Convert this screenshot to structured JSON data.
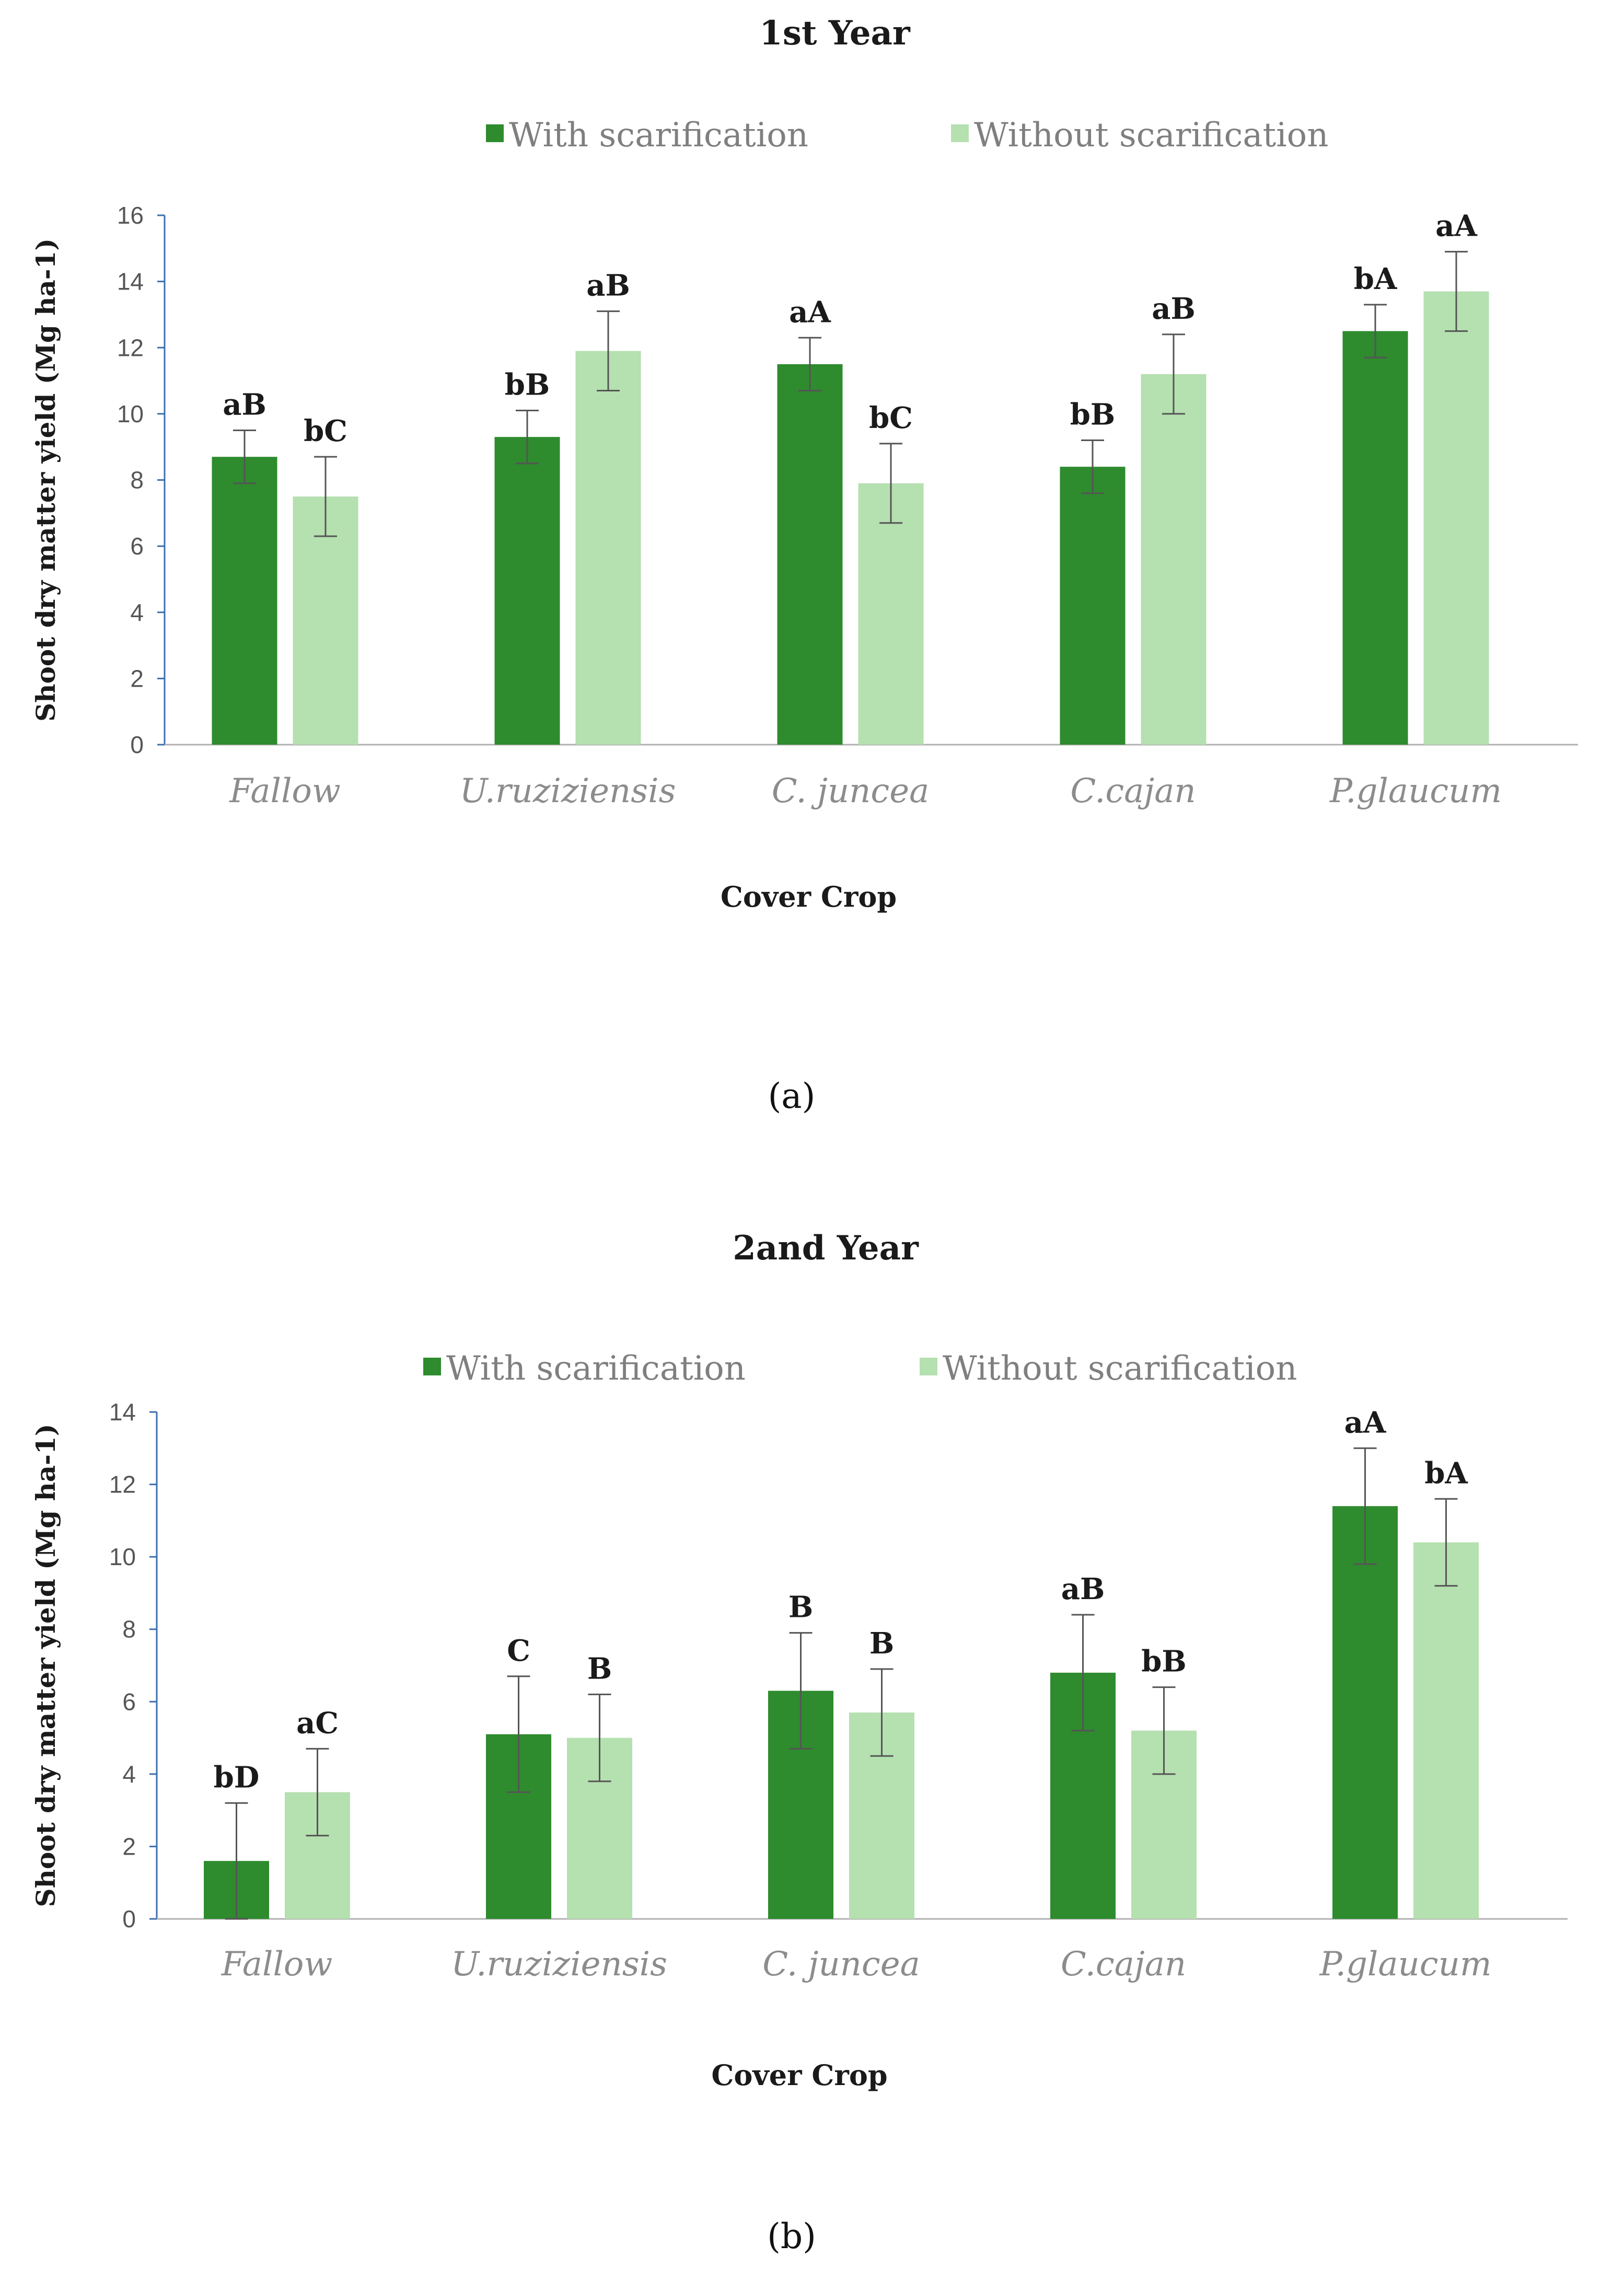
{
  "chart_data": [
    {
      "type": "bar",
      "title": "1st Year",
      "caption": "(a)",
      "xlabel": "Cover Crop",
      "ylabel": "Shoot dry matter yield (Mg ha-1)",
      "ylim": [
        0,
        16
      ],
      "yticks": [
        0,
        2,
        4,
        6,
        8,
        10,
        12,
        14,
        16
      ],
      "categories": [
        "Fallow",
        "U.ruziziensis",
        "C. juncea",
        "C.cajan",
        "P.glaucum"
      ],
      "series": [
        {
          "name": "With scarification",
          "color": "#2e8b2e",
          "values": [
            8.7,
            9.3,
            11.5,
            8.4,
            12.5
          ],
          "errors": [
            0.8,
            0.8,
            0.8,
            0.8,
            0.8
          ],
          "labels": [
            "aB",
            "bB",
            "aA",
            "bB",
            "bA"
          ]
        },
        {
          "name": "Without scarification",
          "color": "#b5e0b0",
          "values": [
            7.5,
            11.9,
            7.9,
            11.2,
            13.7
          ],
          "errors": [
            1.2,
            1.2,
            1.2,
            1.2,
            1.2
          ],
          "labels": [
            "bC",
            "aB",
            "bC",
            "aB",
            "aA"
          ]
        }
      ]
    },
    {
      "type": "bar",
      "title": "2and Year",
      "caption": "(b)",
      "xlabel": "Cover Crop",
      "ylabel": "Shoot dry matter yield (Mg ha-1)",
      "ylim": [
        0,
        14
      ],
      "yticks": [
        0,
        2,
        4,
        6,
        8,
        10,
        12,
        14
      ],
      "categories": [
        "Fallow",
        "U.ruziziensis",
        "C. juncea",
        "C.cajan",
        "P.glaucum"
      ],
      "series": [
        {
          "name": "With scarification",
          "color": "#2e8b2e",
          "values": [
            1.6,
            5.1,
            6.3,
            6.8,
            11.4
          ],
          "errors": [
            1.6,
            1.6,
            1.6,
            1.6,
            1.6
          ],
          "labels": [
            "bD",
            "C",
            "B",
            "aB",
            "aA"
          ]
        },
        {
          "name": "Without scarification",
          "color": "#b5e0b0",
          "values": [
            3.5,
            5.0,
            5.7,
            5.2,
            10.4
          ],
          "errors": [
            1.2,
            1.2,
            1.2,
            1.2,
            1.2
          ],
          "labels": [
            "aC",
            "B",
            "B",
            "bB",
            "bA"
          ]
        }
      ]
    }
  ]
}
